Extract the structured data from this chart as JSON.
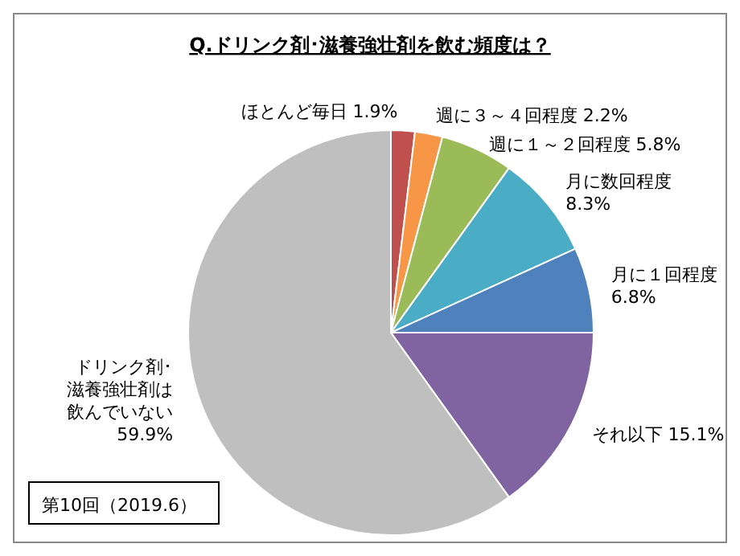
{
  "chart_data": {
    "type": "pie",
    "title": "Q.ドリンク剤･滋養強壮剤を飲む頻度は？",
    "categories": [
      "ほとんど毎日",
      "週に３～４回程度",
      "週に１～２回程度",
      "月に数回程度",
      "月に１回程度",
      "それ以下",
      "ドリンク剤･滋養強壮剤は飲んでいない"
    ],
    "values": [
      1.9,
      2.2,
      5.8,
      8.3,
      6.8,
      15.1,
      59.9
    ],
    "colors": [
      "#c0504d",
      "#f79646",
      "#9bbb59",
      "#4bacc6",
      "#4f81bd",
      "#8064a2",
      "#bfbfbf"
    ],
    "value_labels": [
      "1.9%",
      "2.2%",
      "5.8%",
      "8.3%",
      "6.8%",
      "15.1%",
      "59.9%"
    ],
    "annotations": [
      "第10回（2019.6）"
    ]
  }
}
